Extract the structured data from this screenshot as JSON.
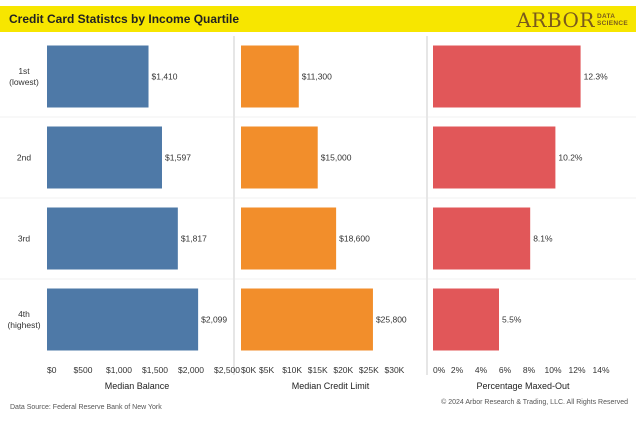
{
  "header": {
    "title": "Credit Card Statistcs by Income Quartile",
    "logo_main": "ARBOR",
    "logo_sub_line1": "DATA",
    "logo_sub_line2": "SCIENCE"
  },
  "colors": {
    "header_bg": "#f7e600",
    "balance": "#4e79a7",
    "credit_limit": "#f28e2b",
    "maxed_out": "#e15759",
    "logo": "#7a5a1c"
  },
  "footer": {
    "source": "Data Source: Federal Reserve Bank of New York",
    "copyright": "© 2024 Arbor Research & Trading, LLC. All Rights Reserved"
  },
  "chart_data": {
    "type": "bar",
    "orientation": "horizontal",
    "categories": [
      "1st\n(lowest)",
      "2nd",
      "3rd",
      "4th\n(highest)"
    ],
    "panels": [
      {
        "name": "Median Balance",
        "color": "#4e79a7",
        "values": [
          1410,
          1597,
          1817,
          2099
        ],
        "value_labels": [
          "$1,410",
          "$1,597",
          "$1,817",
          "$2,099"
        ],
        "xlim": [
          0,
          2500
        ],
        "ticks": [
          0,
          500,
          1000,
          1500,
          2000,
          2500
        ],
        "tick_labels": [
          "$0",
          "$500",
          "$1,000",
          "$1,500",
          "$2,000",
          "$2,500"
        ]
      },
      {
        "name": "Median Credit Limit",
        "color": "#f28e2b",
        "values": [
          11300,
          15000,
          18600,
          25800
        ],
        "value_labels": [
          "$11,300",
          "$15,000",
          "$18,600",
          "$25,800"
        ],
        "xlim": [
          0,
          35000
        ],
        "ticks": [
          0,
          5000,
          10000,
          15000,
          20000,
          25000,
          30000
        ],
        "tick_labels": [
          "$0K",
          "$5K",
          "$10K",
          "$15K",
          "$20K",
          "$25K",
          "$30K"
        ]
      },
      {
        "name": "Percentage Maxed-Out",
        "color": "#e15759",
        "values": [
          12.3,
          10.2,
          8.1,
          5.5
        ],
        "value_labels": [
          "12.3%",
          "10.2%",
          "8.1%",
          "5.5%"
        ],
        "xlim": [
          0,
          15
        ],
        "ticks": [
          0,
          2,
          4,
          6,
          8,
          10,
          12,
          14
        ],
        "tick_labels": [
          "0%",
          "2%",
          "4%",
          "6%",
          "8%",
          "10%",
          "12%",
          "14%"
        ]
      }
    ],
    "grid": false,
    "legend": "none"
  }
}
